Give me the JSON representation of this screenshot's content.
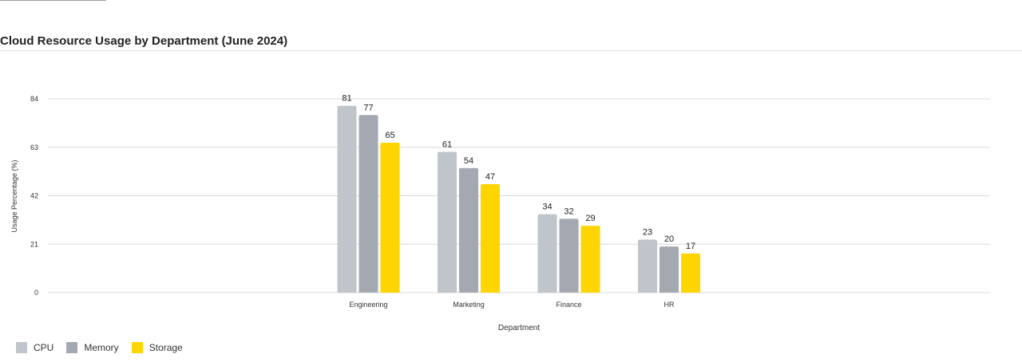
{
  "chart_data": {
    "type": "bar",
    "title": "Cloud Resource Usage by Department (June 2024)",
    "xlabel": "Department",
    "ylabel": "Usage Percentage (%)",
    "categories": [
      "Engineering",
      "Marketing",
      "Finance",
      "HR"
    ],
    "series": [
      {
        "name": "CPU",
        "values": [
          81,
          61,
          34,
          23
        ],
        "color": "#bfc5ca"
      },
      {
        "name": "Memory",
        "values": [
          77,
          54,
          32,
          20
        ],
        "color": "#a4a9b1"
      },
      {
        "name": "Storage",
        "values": [
          65,
          47,
          29,
          17
        ],
        "color": "#ffd500"
      }
    ],
    "ylim": [
      0,
      84
    ],
    "yticks": [
      "0",
      "21",
      "42",
      "63",
      "84"
    ],
    "grid": true,
    "legend": "bottom-left",
    "data_labels": true
  }
}
